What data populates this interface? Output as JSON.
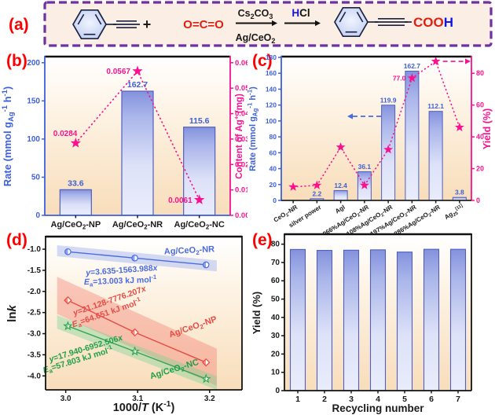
{
  "panels": {
    "a": {
      "label": "(a)"
    },
    "b": {
      "label": "(b)"
    },
    "c": {
      "label": "(c)"
    },
    "d": {
      "label": "(d)"
    },
    "e": {
      "label": "(e)"
    }
  },
  "colors": {
    "blue": "#3D5FDB",
    "pink": "#F8128F",
    "red_label": "#FF0000",
    "black": "#1a1a1a",
    "purple_border": "#7030A0",
    "panel_a_bg": "#FBEEE4",
    "bar_stroke": "#4F5FC4",
    "line_blue": "#4A6CE0",
    "line_red": "#E64C44",
    "line_green": "#2FA44E",
    "green_text": "#1E9E46",
    "hcl_h_blue": "#1515E0",
    "co2_red": "#E02010"
  },
  "reaction": {
    "plus": "+",
    "co2": "O=C=O",
    "arrow1_top": "Cs_{2}CO_{3}",
    "arrow1_bottom": "Ag/CeO_{2}",
    "hcl_h": "H",
    "hcl_cl": "Cl",
    "product_acid": "COO",
    "product_acid_h": "H"
  },
  "chart_data": [
    {
      "id": "b",
      "type": "bar+scatter",
      "categories": [
        "Ag/CeO_{2}-NP",
        "Ag/CeO_{2}-NR",
        "Ag/CeO_{2}-NC"
      ],
      "bars": {
        "values": [
          33.6,
          162.7,
          115.6
        ],
        "labels": [
          "33.6",
          "162.7",
          "115.6"
        ]
      },
      "left_axis": {
        "title": "Rate (mmol g_{Ag}^{-1} h^{-1})",
        "ticks": [
          0,
          50,
          100,
          150,
          200
        ],
        "max": 207
      },
      "right_axis": {
        "title": "Content of Ag^{+} (mg)",
        "tick_labels": [
          "0.00",
          "0.01",
          "0.02",
          "0.03",
          "0.04",
          "0.05",
          "0.06"
        ],
        "tick_values": [
          0,
          0.01,
          0.02,
          0.03,
          0.04,
          0.05,
          0.06
        ],
        "max": 0.0621
      },
      "stars": {
        "values": [
          0.0284,
          0.0567,
          0.0061
        ],
        "labels": [
          "0.0284",
          "0.0567",
          "0.0061"
        ]
      }
    },
    {
      "id": "c",
      "type": "bar+scatter",
      "categories": [
        "CeO_{2}-NR",
        "silver power",
        "AgI",
        "0.066%Ag/CeO_{2}-NR",
        "0.108%Ag/CeO_{2}-NR",
        "0.197%Ag/CeO_{2}-NR",
        "0.286%Ag/CeO_{2}-NR",
        "Ag_{25}^{[11]}"
      ],
      "bars": {
        "values": [
          null,
          2.2,
          12.4,
          36.1,
          119.9,
          162.7,
          112.1,
          3.8
        ],
        "labels": [
          null,
          "2.2",
          "12.4",
          "36.1",
          "119.9",
          "162.7",
          "112.1",
          "3.8"
        ]
      },
      "left_axis": {
        "title": "Rate (mmol g_{Ag}^{-1} h^{-1})",
        "ticks": [
          0,
          20,
          40,
          60,
          80,
          100,
          120,
          140,
          160,
          180
        ],
        "max": 180
      },
      "right_axis": {
        "title": "Yield (%)",
        "tick_labels": [
          "0",
          "20",
          "40",
          "60",
          "80"
        ],
        "tick_values": [
          0,
          20,
          40,
          60,
          80
        ],
        "max": 90
      },
      "stars": {
        "values": [
          8.5,
          9.5,
          33.5,
          9.5,
          32,
          77,
          87.5,
          46
        ],
        "labels": [
          null,
          null,
          null,
          null,
          null,
          "77.0",
          null,
          null
        ]
      }
    },
    {
      "id": "d",
      "type": "line",
      "x_axis": {
        "title": "1000/*T* (K^{-1})",
        "tick_labels": [
          "3.0",
          "3.1",
          "3.2"
        ],
        "tick_values": [
          3.0,
          3.1,
          3.2
        ],
        "min": 2.972,
        "max": 3.245
      },
      "y_axis": {
        "title": "ln*k*",
        "tick_labels": [
          "-1.0",
          "-1.5",
          "-2.0",
          "-2.5",
          "-3.0",
          "-3.5",
          "-4.0"
        ],
        "tick_values": [
          -1.0,
          -1.5,
          -2.0,
          -2.5,
          -3.0,
          -3.5,
          -4.0
        ],
        "min": -4.33,
        "max": -0.72
      },
      "series": [
        {
          "name": "Ag/CeO2-NR",
          "color_key": "line_blue",
          "marker": "circle",
          "band": 0.13,
          "points": [
            [
              3.003,
              -1.06
            ],
            [
              3.096,
              -1.21
            ],
            [
              3.195,
              -1.37
            ]
          ],
          "annotations": [
            {
              "text": "Ag/CeO_{2}-NR",
              "x": 3.172,
              "y": -1.09,
              "rot": -3,
              "fs": 11
            },
            {
              "text": "*y*=3.635-1563.988*x*",
              "x": 3.078,
              "y": -1.56,
              "rot": -4,
              "fs": 10.5
            },
            {
              "text": "*E*_{a}=13.003 kJ mol^{-1}",
              "x": 3.076,
              "y": -1.81,
              "rot": -2,
              "fs": 10.5
            }
          ]
        },
        {
          "name": "Ag/CeO2-NP",
          "color_key": "line_red",
          "marker": "diamond",
          "band": 0.44,
          "points": [
            [
              3.003,
              -2.21
            ],
            [
              3.096,
              -2.97
            ],
            [
              3.195,
              -3.68
            ]
          ],
          "annotations": [
            {
              "text": "*y*=21.128-7776.207*x*",
              "x": 3.062,
              "y": -2.28,
              "rot": -19,
              "fs": 10.5
            },
            {
              "text": "*E*_{a}=64.651 kJ mol^{-1}",
              "x": 3.058,
              "y": -2.57,
              "rot": -19,
              "fs": 10.5
            },
            {
              "text": "Ag/CeO_{2}-NP",
              "x": 3.178,
              "y": -2.9,
              "rot": -19,
              "fs": 11
            }
          ]
        },
        {
          "name": "Ag/CeO2-NC",
          "color_key": "line_green",
          "marker": "star",
          "band": 0.16,
          "points": [
            [
              3.003,
              -2.82
            ],
            [
              3.096,
              -3.42
            ],
            [
              3.195,
              -4.07
            ]
          ],
          "annotations": [
            {
              "text": "*y*=17.940-6952.506*x*",
              "x": 3.029,
              "y": -3.41,
              "rot": -17,
              "fs": 10.5
            },
            {
              "text": "*E*_{a}=57.803 kJ mol^{-1}",
              "x": 3.018,
              "y": -3.68,
              "rot": -17,
              "fs": 10.5
            },
            {
              "text": "Ag/CeO_{2}-NC",
              "x": 3.152,
              "y": -3.9,
              "rot": -17,
              "fs": 11
            }
          ]
        }
      ]
    },
    {
      "id": "e",
      "type": "bar",
      "categories": [
        "1",
        "2",
        "3",
        "4",
        "5",
        "6",
        "7"
      ],
      "bars": {
        "values": [
          77.1,
          76.6,
          76.7,
          76.9,
          75.7,
          77.2,
          77.2
        ]
      },
      "left_axis": {
        "title": "Yield (%)",
        "ticks": [
          0,
          10,
          20,
          30,
          40,
          50,
          60,
          70,
          80
        ],
        "max": 85
      },
      "x_axis": {
        "title": "Recycling number"
      }
    }
  ]
}
